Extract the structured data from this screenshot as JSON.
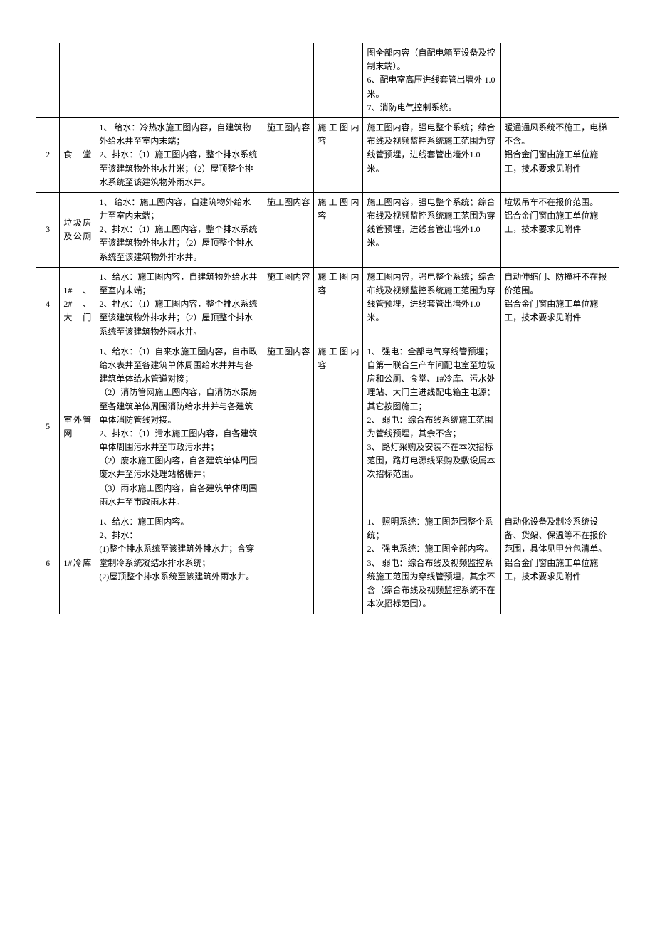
{
  "table": {
    "rows": [
      {
        "num": "",
        "name": "",
        "water": "",
        "hvac": "",
        "fire": "",
        "elec": "图全部内容（自配电箱至设备及控制末端）。\n6、配电室高压进线套管出墙外 1.0 米。\n7、消防电气控制系统。",
        "note": ""
      },
      {
        "num": "2",
        "name": "食堂",
        "water": "1、 给水：冷热水施工图内容，自建筑物外给水井至室内末端；\n2、排水：（1）施工图内容，整个排水系统至该建筑物外排水井米；（2）屋顶整个排水系统至该建筑物外雨水井。",
        "hvac": "施工图内容",
        "fire": "施工图内容",
        "elec": "施工图内容，强电整个系统；综合布线及视频监控系统施工范围为穿线管预埋，进线套管出墙外1.0 米。",
        "note": "暖通通风系统不施工，电梯不含。\n铝合金门窗由施工单位施工，技术要求见附件"
      },
      {
        "num": "3",
        "name": "垃圾房及公厕",
        "water": "1、 给水：施工图内容，自建筑物外给水井至室内末端；\n2、排水：（1）施工图内容，整个排水系统至该建筑物外排水井；（2）屋顶整个排水系统至该建筑物外排水井。",
        "hvac": "施工图内容",
        "fire": "施工图内容",
        "elec": "施工图内容，强电整个系统；综合布线及视频监控系统施工范围为穿线管预埋，进线套管出墙外1.0 米。",
        "note": "垃圾吊车不在报价范围。\n铝合金门窗由施工单位施工，技术要求见附件"
      },
      {
        "num": "4",
        "name": "1# 、2# 、大门",
        "water": "1、给水：施工图内容，自建筑物外给水井至室内末端；\n2、排水：（1）施工图内容，整个排水系统至该建筑物外排水井；（2）屋顶整个排水系统至该建筑物外雨水井。",
        "hvac": "施工图内容",
        "fire": "施工图内容",
        "elec": "施工图内容，强电整个系统；综合布线及视频监控系统施工范围为穿线管预埋，进线套管出墙外1.0 米。",
        "note": "自动伸缩门、防撞杆不在报价范围。\n铝合金门窗由施工单位施工，技术要求见附件"
      },
      {
        "num": "5",
        "name": "室外管网",
        "water": "1、给水：（1）自来水施工图内容，自市政给水表井至各建筑单体周围给水井并与各建筑单体给水管道对接；\n（2）消防管网施工图内容，自消防水泵房至各建筑单体周围消防给水井并与各建筑单体消防管线对接。\n2、排水：（1）污水施工图内容，自各建筑单体周围污水井至市政污水井；\n（2）废水施工图内容，自各建筑单体周围废水井至污水处理站格栅井；\n（3）雨水施工图内容，自各建筑单体周围雨水井至市政雨水井。",
        "hvac": "施工图内容",
        "fire": "施工图内容",
        "elec": "1、 强电：全部电气穿线管预埋；自第一联合生产车间配电室至垃圾房和公厕、食堂、1#冷库、污水处理站、大门主进线配电箱主电源；其它按图施工；\n2、 弱电：综合布线系统施工范围为管线预埋，其余不含；\n3、 路灯采购及安装不在本次招标范围，路灯电源线采购及敷设属本次招标范围。",
        "note": ""
      },
      {
        "num": "6",
        "name": "1#冷库",
        "water": "1、给水：施工图内容。\n2、排水：\n(1)整个排水系统至该建筑外排水井；含穿堂制冷系统凝结水排水系统；\n(2)屋顶整个排水系统至该建筑外雨水井。",
        "hvac": "",
        "fire": "",
        "elec": "1、 照明系统：施工图范围整个系统；\n2、 强电系统：施工图全部内容。\n3、 弱电：综合布线及视频监控系统施工范围为穿线管预埋，其余不含（综合布线及视频监控系统不在本次招标范围）。",
        "note": "自动化设备及制冷系统设备、货架、保温等不在报价范围，具体见甲分包清单。\n铝合金门窗由施工单位施工，技术要求见附件"
      }
    ]
  }
}
